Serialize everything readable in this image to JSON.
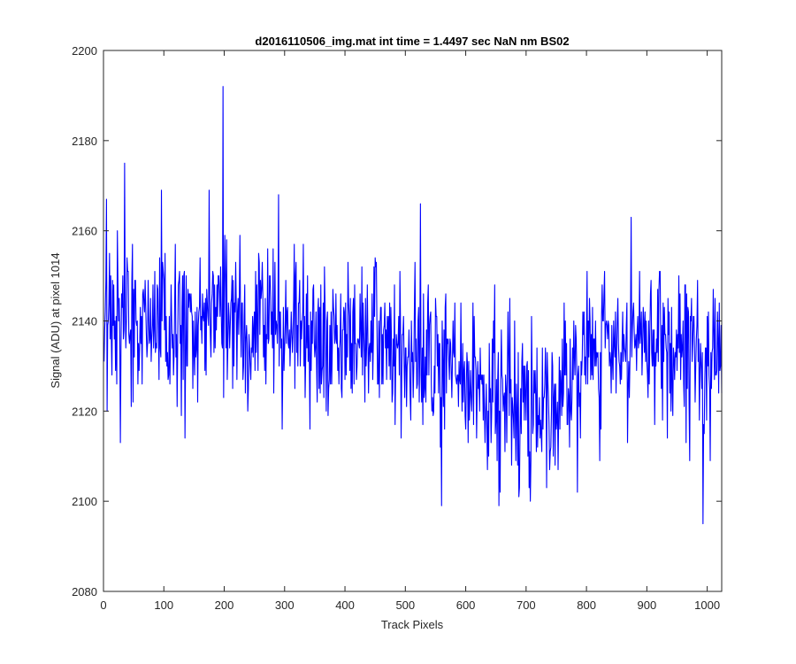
{
  "chart_data": {
    "type": "line",
    "title": "d2016110506_img.mat int time = 1.4497 sec  NaN nm BS02",
    "xlabel": "Track Pixels",
    "ylabel": "Signal (ADU) at pixel 1014",
    "xlim": [
      0,
      1024
    ],
    "ylim": [
      2080,
      2200
    ],
    "xticks": [
      0,
      100,
      200,
      300,
      400,
      500,
      600,
      700,
      800,
      900,
      1000
    ],
    "yticks": [
      2080,
      2100,
      2120,
      2140,
      2160,
      2180,
      2200
    ],
    "grid": false,
    "line_color": "#0000ff",
    "series": [
      {
        "noise_std": 8.5,
        "baseline": [
          [
            0,
            2141
          ],
          [
            60,
            2140
          ],
          [
            120,
            2139
          ],
          [
            200,
            2140
          ],
          [
            280,
            2139
          ],
          [
            350,
            2137
          ],
          [
            420,
            2136
          ],
          [
            500,
            2133
          ],
          [
            560,
            2130
          ],
          [
            600,
            2127
          ],
          [
            650,
            2124
          ],
          [
            700,
            2122
          ],
          [
            760,
            2124
          ],
          [
            800,
            2133
          ],
          [
            860,
            2136
          ],
          [
            920,
            2133
          ],
          [
            980,
            2133
          ],
          [
            1024,
            2131
          ]
        ],
        "peaks": [
          [
            5,
            2167
          ],
          [
            28,
            2113
          ],
          [
            35,
            2175
          ],
          [
            96,
            2169
          ],
          [
            135,
            2114
          ],
          [
            175,
            2169
          ],
          [
            198,
            2192
          ],
          [
            290,
            2168
          ],
          [
            525,
            2166
          ],
          [
            560,
            2099
          ],
          [
            655,
            2099
          ],
          [
            707,
            2100
          ],
          [
            785,
            2102
          ],
          [
            874,
            2163
          ],
          [
            993,
            2095
          ],
          [
            1005,
            2109
          ]
        ]
      }
    ]
  }
}
